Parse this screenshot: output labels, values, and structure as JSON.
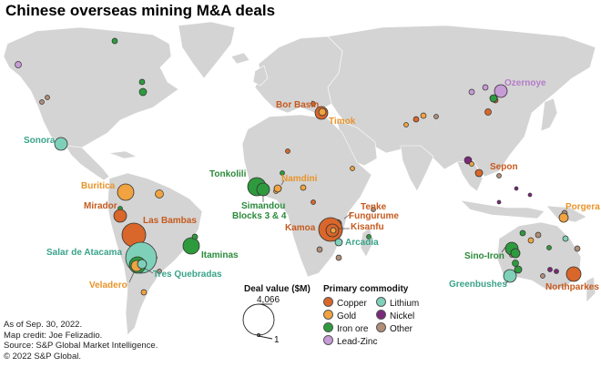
{
  "title": "Chinese overseas mining M&A deals",
  "colors": {
    "land": "#d4d4d4",
    "copper": "#d9662a",
    "gold": "#f0a340",
    "iron_ore": "#2e9a3e",
    "lead_zinc": "#c79bd6",
    "lithium": "#7fd0b8",
    "nickel": "#7a2a7a",
    "other": "#b08e78"
  },
  "labels": {
    "bor_basin": "Bor Basin",
    "timok": "Timok",
    "ozernoye": "Ozernoye",
    "sonora": "Sonora",
    "sepon": "Sepon",
    "porgera": "Porgera",
    "buritica": "Buritica",
    "tonkolili": "Tonkolili",
    "namdini": "Namdini",
    "simandou": "Simandou",
    "simandou2": "Blocks 3 & 4",
    "tenke": "Tenke",
    "fungurume": "Fungurume",
    "mirador": "Mirador",
    "las_bambas": "Las Bambas",
    "kamoa": "Kamoa",
    "kisanfu": "Kisanfu",
    "arcadia": "Arcadia",
    "salar": "Salar de Atacama",
    "itaminas": "Itaminas",
    "sino_iron": "Sino-Iron",
    "veladero": "Veladero",
    "tres_quebradas": "Tres Quebradas",
    "greenbushes": "Greenbushes",
    "northparkes": "Northparkes"
  },
  "legend": {
    "deal_value_title": "Deal value ($M)",
    "deal_value_max": "4,066",
    "deal_value_min": "1",
    "commodity_title": "Primary commodity",
    "items": [
      {
        "label": "Copper",
        "color": "#d9662a"
      },
      {
        "label": "Lithium",
        "color": "#7fd0b8"
      },
      {
        "label": "Gold",
        "color": "#f0a340"
      },
      {
        "label": "Nickel",
        "color": "#7a2a7a"
      },
      {
        "label": "Iron ore",
        "color": "#2e9a3e"
      },
      {
        "label": "Other",
        "color": "#b08e78"
      },
      {
        "label": "Lead-Zinc",
        "color": "#c79bd6"
      }
    ]
  },
  "footer": {
    "line1": "As of Sep. 30, 2022.",
    "line2": "Map credit: Joe Felizadio.",
    "line3": "Source: S&P Global Market Intelligence.",
    "line4": "© 2022 S&P Global."
  }
}
